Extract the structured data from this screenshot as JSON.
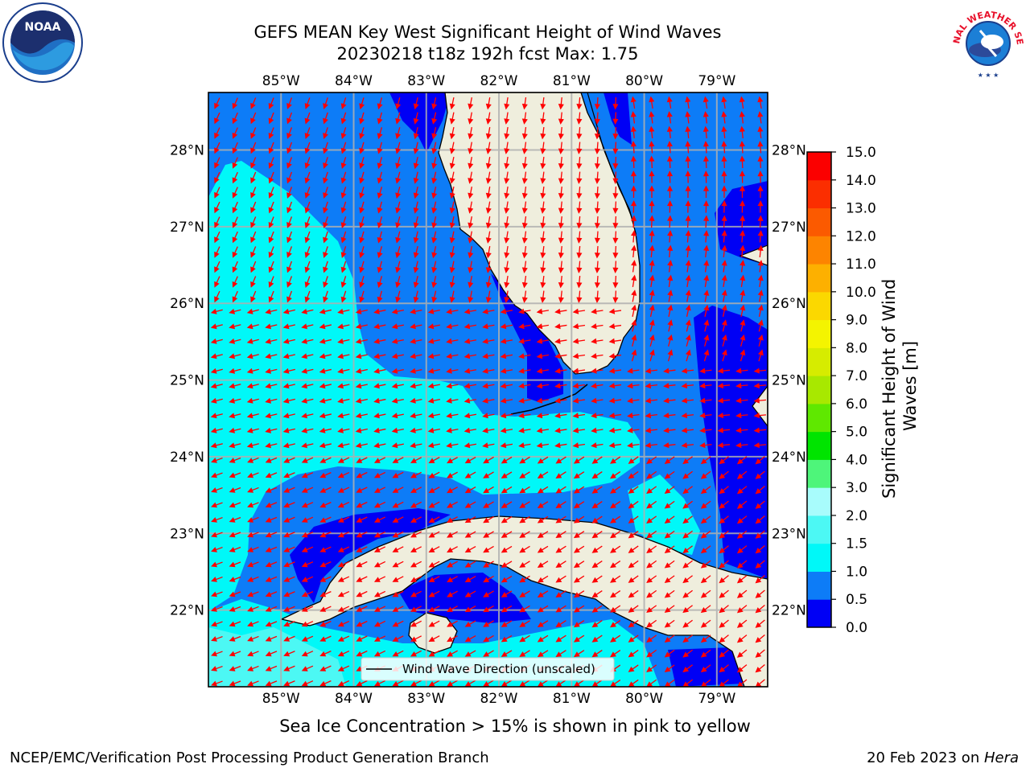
{
  "title": {
    "line1": "GEFS MEAN Key West Significant Height of Wind Waves",
    "line2": "20230218 t18z 192h fcst   Max: 1.75"
  },
  "logos": {
    "left": {
      "icon": "noaa-logo-icon",
      "text": "NOAA"
    },
    "right": {
      "icon": "nws-logo-icon",
      "text": "NATIONAL WEATHER SERVICE"
    }
  },
  "map": {
    "lon_labels": [
      "85°W",
      "84°W",
      "83°W",
      "82°W",
      "81°W",
      "80°W",
      "79°W"
    ],
    "lat_labels": [
      "28°N",
      "27°N",
      "26°N",
      "25°N",
      "24°N",
      "23°N",
      "22°N"
    ],
    "lon_range": [
      -86.0,
      -78.3
    ],
    "lat_range": [
      21.0,
      28.75
    ],
    "legend_text": "Wind Wave Direction (unscaled)",
    "legend_position": "bottom-center",
    "colors": {
      "land": "#efeedd",
      "wave_0_0.5": "#0000f5",
      "wave_0.5_1.0": "#0d7cf7",
      "wave_1.0_1.5": "#00f8f8",
      "wave_1.5_2.0": "#4cf8f4",
      "arrow": "#ff0000"
    }
  },
  "colorbar": {
    "label_line1": "Significant Height of Wind",
    "label_line2": "Waves [m]",
    "ticks": [
      "0.0",
      "0.5",
      "1.0",
      "1.5",
      "2.0",
      "3.0",
      "4.0",
      "5.0",
      "6.0",
      "7.0",
      "8.0",
      "9.0",
      "10.0",
      "11.0",
      "12.0",
      "13.0",
      "14.0",
      "15.0"
    ],
    "colors": [
      "#0000f5",
      "#0d7cf7",
      "#00f8f8",
      "#4cf8f4",
      "#a8fcfc",
      "#4ef57a",
      "#00e400",
      "#5fe800",
      "#a8e800",
      "#d6ec00",
      "#f4f400",
      "#fbd800",
      "#fdb000",
      "#fd8400",
      "#fb5a00",
      "#fb2e00",
      "#fb0000"
    ]
  },
  "caption": "Sea Ice Concentration > 15% is shown in pink to yellow",
  "footer": {
    "left": "NCEP/EMC/Verification Post Processing Product Generation Branch",
    "right_date": "20 Feb 2023 on ",
    "right_host": "Hera"
  }
}
